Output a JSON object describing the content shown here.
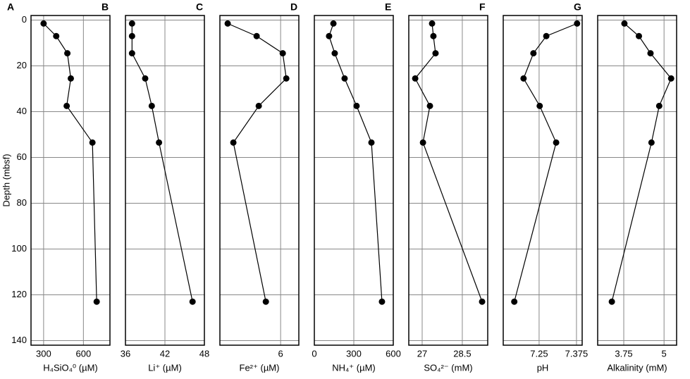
{
  "chart_data": [
    {
      "type": "line",
      "panel_label": "A",
      "xlabel": "H₄SiO₄⁰ (µM)",
      "ylabel": "Depth (mbsf)",
      "y_inverted": true,
      "grid": true,
      "color": "#000000",
      "x": [
        300,
        395,
        479,
        505,
        474,
        668,
        700
      ],
      "y": [
        1.5,
        7,
        14.5,
        25.5,
        37.5,
        53.5,
        123
      ],
      "xlim": [
        205,
        800
      ],
      "xticks": [
        300,
        600
      ],
      "ylim": [
        -2,
        142
      ],
      "yticks": [
        0,
        20,
        40,
        60,
        80,
        100,
        120,
        140
      ]
    },
    {
      "type": "line",
      "panel_label": "B",
      "xlabel": "Li⁺ (µM)",
      "y_inverted": true,
      "grid": true,
      "color": "#000000",
      "x": [
        37,
        37,
        37,
        39,
        40,
        41.1,
        46.2
      ],
      "y": [
        1.5,
        7,
        14.5,
        25.5,
        37.5,
        53.5,
        123
      ],
      "xlim": [
        36,
        48
      ],
      "xticks": [
        36,
        42,
        48
      ],
      "ylim": [
        -2,
        142
      ],
      "yticks": [
        0,
        20,
        40,
        60,
        80,
        100,
        120,
        140
      ]
    },
    {
      "type": "line",
      "panel_label": "C",
      "xlabel": "Fe²⁺ (µM)",
      "y_inverted": true,
      "grid": true,
      "color": "#000000",
      "x": [
        0.77,
        3.63,
        6.21,
        6.56,
        3.84,
        1.33,
        4.54
      ],
      "y": [
        1.5,
        7,
        14.5,
        25.5,
        37.5,
        53.5,
        123
      ],
      "xlim": [
        0,
        7.8
      ],
      "xticks": [
        6
      ],
      "ylim": [
        -2,
        142
      ],
      "yticks": [
        0,
        20,
        40,
        60,
        80,
        100,
        120,
        140
      ]
    },
    {
      "type": "line",
      "panel_label": "D",
      "xlabel": "NH₄⁺ (µM)",
      "y_inverted": true,
      "grid": true,
      "color": "#000000",
      "x": [
        145,
        112,
        155,
        230,
        321,
        434,
        514
      ],
      "y": [
        1.5,
        7,
        14.5,
        25.5,
        37.5,
        53.5,
        123
      ],
      "xlim": [
        0,
        600
      ],
      "xticks": [
        0,
        300,
        600
      ],
      "ylim": [
        -2,
        142
      ],
      "yticks": [
        0,
        20,
        40,
        60,
        80,
        100,
        120,
        140
      ]
    },
    {
      "type": "line",
      "panel_label": "E",
      "xlabel": "SO₄²⁻ (mM)",
      "y_inverted": true,
      "grid": true,
      "color": "#000000",
      "x": [
        27.37,
        27.42,
        27.5,
        26.74,
        27.29,
        27.03,
        29.24
      ],
      "y": [
        1.5,
        7,
        14.5,
        25.5,
        37.5,
        53.5,
        123
      ],
      "xlim": [
        26.5,
        29.45
      ],
      "xticks": [
        27,
        28.5
      ],
      "ylim": [
        -2,
        142
      ],
      "yticks": [
        0,
        20,
        40,
        60,
        80,
        100,
        120,
        140
      ]
    },
    {
      "type": "line",
      "panel_label": "F",
      "xlabel": "pH",
      "y_inverted": true,
      "grid": true,
      "color": "#000000",
      "x": [
        7.377,
        7.274,
        7.231,
        7.198,
        7.252,
        7.307,
        7.167
      ],
      "y": [
        1.5,
        7,
        14.5,
        25.5,
        37.5,
        53.5,
        123
      ],
      "xlim": [
        7.13,
        7.394
      ],
      "xticks": [
        7.25,
        7.375
      ],
      "ylim": [
        -2,
        142
      ],
      "yticks": [
        0,
        20,
        40,
        60,
        80,
        100,
        120,
        140
      ]
    },
    {
      "type": "line",
      "panel_label": "G",
      "xlabel": "Alkalinity (mM)",
      "y_inverted": true,
      "grid": true,
      "color": "#000000",
      "x": [
        3.77,
        4.22,
        4.58,
        5.22,
        4.85,
        4.61,
        3.38
      ],
      "y": [
        1.5,
        7,
        14.5,
        25.5,
        37.5,
        53.5,
        123
      ],
      "xlim": [
        2.94,
        5.39
      ],
      "xticks": [
        3.75,
        5
      ],
      "ylim": [
        -2,
        142
      ],
      "yticks": [
        0,
        20,
        40,
        60,
        80,
        100,
        120,
        140
      ]
    }
  ]
}
